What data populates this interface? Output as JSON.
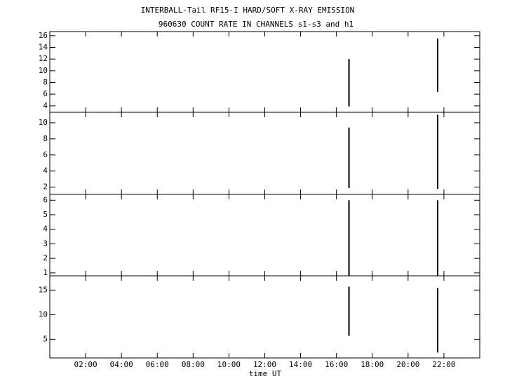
{
  "chart_data": [
    {
      "type": "line",
      "title": "INTERBALL-Tail RF15-I HARD/SOFT X-RAY EMISSION",
      "subtitle": "960630  COUNT RATE IN CHANNELS s1-s3 and h1",
      "x": [
        16.7,
        16.7,
        16.7,
        21.65,
        21.65
      ],
      "series": [
        {
          "color": "#000000",
          "values": [
            12,
            3.9,
            null,
            15.5,
            6.4
          ]
        }
      ],
      "xlim": [
        0,
        24
      ],
      "ylim": [
        2.9,
        16.7
      ],
      "yticks": [
        4,
        6,
        8,
        10,
        12,
        14,
        16
      ]
    },
    {
      "type": "line",
      "x": [
        16.7,
        16.7,
        16.7,
        21.65,
        21.65
      ],
      "series": [
        {
          "color": "#000000",
          "values": [
            9.4,
            1.9,
            null,
            11,
            1.8
          ]
        }
      ],
      "xlim": [
        0,
        24
      ],
      "ylim": [
        1.1,
        11.3
      ],
      "yticks": [
        2,
        4,
        6,
        8,
        10
      ]
    },
    {
      "type": "line",
      "x": [
        16.7,
        16.7,
        16.7,
        21.65,
        21.65
      ],
      "series": [
        {
          "color": "#000000",
          "values": [
            6,
            0.8,
            null,
            6,
            0.8
          ]
        }
      ],
      "xlim": [
        0,
        24
      ],
      "ylim": [
        0.8,
        6.4
      ],
      "yticks": [
        1,
        2,
        3,
        4,
        5,
        6
      ]
    },
    {
      "type": "line",
      "xlabel": "time UT",
      "x": [
        16.7,
        16.7,
        16.7,
        21.65,
        21.65
      ],
      "series": [
        {
          "color": "#000000",
          "values": [
            15.7,
            5.7,
            null,
            15.4,
            2.3
          ]
        }
      ],
      "xlim": [
        0,
        24
      ],
      "ylim": [
        1.2,
        17.9
      ],
      "yticks": [
        5,
        10,
        15
      ],
      "xticks": [
        {
          "value": 2,
          "label": "02:00"
        },
        {
          "value": 4,
          "label": "04:00"
        },
        {
          "value": 6,
          "label": "06:00"
        },
        {
          "value": 8,
          "label": "08:00"
        },
        {
          "value": 10,
          "label": "10:00"
        },
        {
          "value": 12,
          "label": "12:00"
        },
        {
          "value": 14,
          "label": "14:00"
        },
        {
          "value": 16,
          "label": "16:00"
        },
        {
          "value": 18,
          "label": "18:00"
        },
        {
          "value": 20,
          "label": "20:00"
        },
        {
          "value": 22,
          "label": "22:00"
        }
      ]
    }
  ]
}
